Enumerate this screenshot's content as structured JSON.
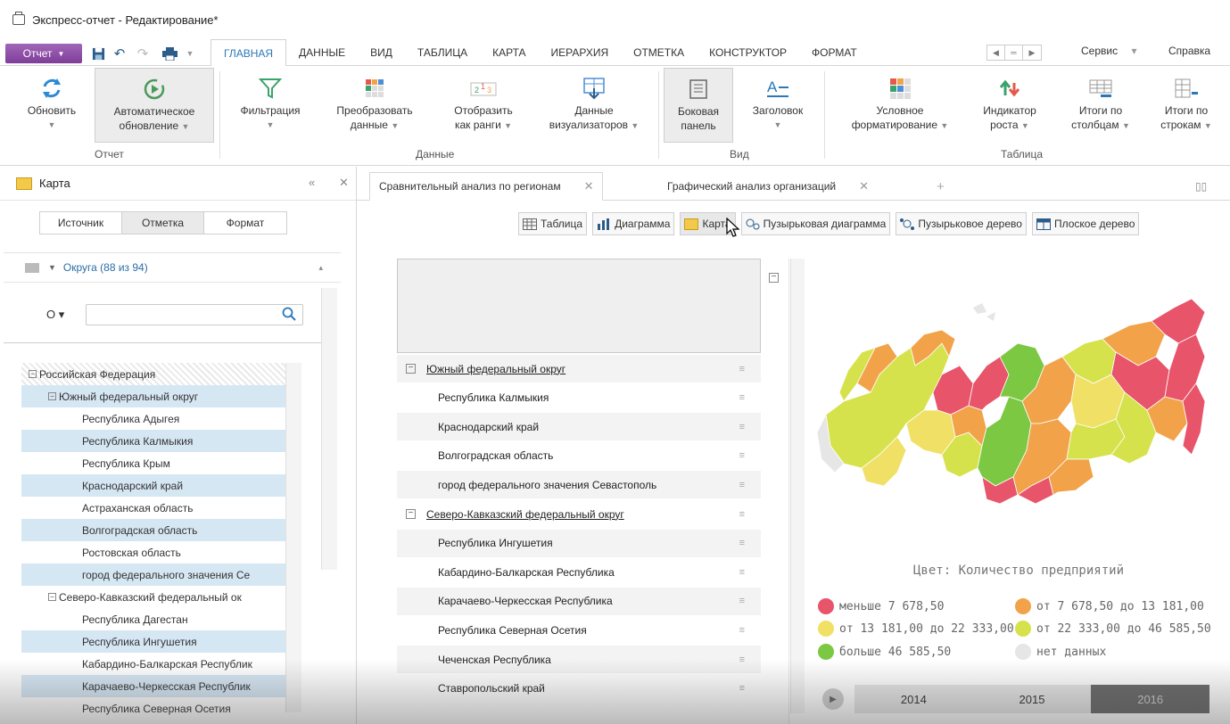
{
  "window": {
    "title": "Экспресс-отчет - Редактирование*"
  },
  "menubar": {
    "report_label": "Отчет",
    "tabs": [
      "ГЛАВНАЯ",
      "ДАННЫЕ",
      "ВИД",
      "ТАБЛИЦА",
      "КАРТА",
      "ИЕРАРХИЯ",
      "ОТМЕТКА",
      "КОНСТРУКТОР",
      "ФОРМАТ"
    ],
    "active_tab": "ГЛАВНАЯ",
    "service_label": "Сервис",
    "help_label": "Справка"
  },
  "ribbon": {
    "refresh": "Обновить",
    "auto_refresh_1": "Автоматическое",
    "auto_refresh_2": "обновление",
    "filter": "Фильтрация",
    "transform_1": "Преобразовать",
    "transform_2": "данные",
    "ranks_1": "Отобразить",
    "ranks_2": "как ранги",
    "viz_data_1": "Данные",
    "viz_data_2": "визуализаторов",
    "side_panel_1": "Боковая",
    "side_panel_2": "панель",
    "heading": "Заголовок",
    "cond_format_1": "Условное",
    "cond_format_2": "форматирование",
    "growth_1": "Индикатор",
    "growth_2": "роста",
    "col_totals_1": "Итоги по",
    "col_totals_2": "столбцам",
    "row_totals_1": "Итоги по",
    "row_totals_2": "строкам",
    "groups": {
      "report": "Отчет",
      "data": "Данные",
      "view": "Вид",
      "table": "Таблица"
    }
  },
  "left_panel": {
    "title": "Карта",
    "tabs": [
      "Источник",
      "Отметка",
      "Формат"
    ],
    "active_tab": "Отметка",
    "dimension": "Округа (88 из 94)",
    "search_placeholder": "",
    "tree": [
      {
        "level": 0,
        "box": "−",
        "label": "Российская Федерация",
        "sel": false
      },
      {
        "level": 1,
        "box": "−",
        "label": "Южный федеральный округ",
        "sel": true
      },
      {
        "level": 2,
        "label": "Республика Адыгея",
        "sel": false
      },
      {
        "level": 2,
        "label": "Республика Калмыкия",
        "sel": true
      },
      {
        "level": 2,
        "label": "Республика Крым",
        "sel": false
      },
      {
        "level": 2,
        "label": "Краснодарский край",
        "sel": true
      },
      {
        "level": 2,
        "label": "Астраханская область",
        "sel": false
      },
      {
        "level": 2,
        "label": "Волгоградская область",
        "sel": true
      },
      {
        "level": 2,
        "label": "Ростовская область",
        "sel": false
      },
      {
        "level": 2,
        "label": "город федерального значения Се",
        "sel": true
      },
      {
        "level": 1,
        "box": "−",
        "label": "Северо-Кавказский федеральный ок",
        "sel": false
      },
      {
        "level": 2,
        "label": "Республика Дагестан",
        "sel": false
      },
      {
        "level": 2,
        "label": "Республика Ингушетия",
        "sel": true
      },
      {
        "level": 2,
        "label": "Кабардино-Балкарская Республик",
        "sel": false
      },
      {
        "level": 2,
        "label": "Карачаево-Черкесская Республик",
        "sel": true
      },
      {
        "level": 2,
        "label": "Республика Северная Осетия",
        "sel": false
      }
    ]
  },
  "doc_tabs": [
    "Сравнительный анализ по регионам",
    "Графический анализ организаций"
  ],
  "view_buttons": [
    "Таблица",
    "Диаграмма",
    "Карта",
    "Пузырьковая диаграмма",
    "Пузырьковое дерево",
    "Плоское дерево"
  ],
  "grid_rows": [
    {
      "label": "Южный федеральный округ",
      "group": true
    },
    {
      "label": "Республика Калмыкия",
      "group": false
    },
    {
      "label": "Краснодарский край",
      "group": false
    },
    {
      "label": "Волгоградская область",
      "group": false
    },
    {
      "label": "город федерального значения Севастополь",
      "group": false
    },
    {
      "label": "Северо-Кавказский федеральный округ",
      "group": true
    },
    {
      "label": "Республика Ингушетия",
      "group": false
    },
    {
      "label": "Кабардино-Балкарская Республика",
      "group": false
    },
    {
      "label": "Карачаево-Черкесская Республика",
      "group": false
    },
    {
      "label": "Республика Северная Осетия",
      "group": false
    },
    {
      "label": "Чеченская Республика",
      "group": false
    },
    {
      "label": "Ставропольский край",
      "group": false
    }
  ],
  "map": {
    "color_title": "Цвет: Количество предприятий",
    "legend": [
      {
        "label": "меньше 7 678,50",
        "color": "#e8546a"
      },
      {
        "label": "от 7 678,50 до 13 181,00",
        "color": "#f2a34a"
      },
      {
        "label": "от 13 181,00 до 22 333,00",
        "color": "#f0e066"
      },
      {
        "label": "от 22 333,00 до 46 585,50",
        "color": "#d6e24c"
      },
      {
        "label": "больше 46 585,50",
        "color": "#7dc843"
      },
      {
        "label": "нет данных",
        "color": "#e6e6e6"
      }
    ],
    "years": [
      "2014",
      "2015",
      "2016"
    ],
    "active_year": "2016"
  },
  "colors": {
    "accent": "#2b78b8",
    "report_button": "#8a47a6",
    "selection": "#d6e7f4"
  }
}
